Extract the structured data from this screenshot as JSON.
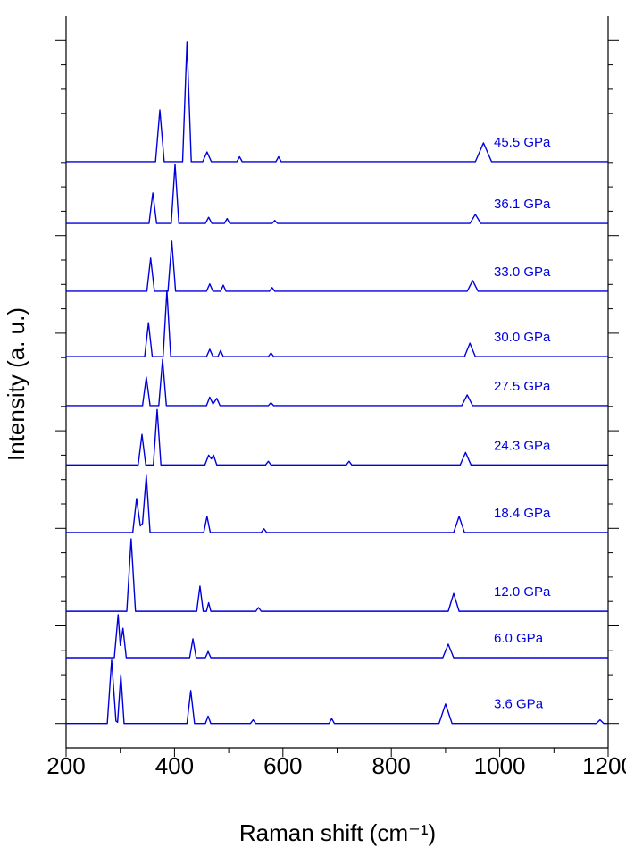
{
  "chart_data": {
    "type": "line",
    "x_label": "Raman shift (cm⁻¹)",
    "y_label": "Intensity (a. u.)",
    "xlim": [
      200,
      1200
    ],
    "xticks": [
      200,
      400,
      600,
      800,
      1000,
      1200
    ],
    "xticks_minor": [
      300,
      500,
      700,
      900,
      1100
    ],
    "ylim": [
      0,
      30
    ],
    "yticks": [
      1,
      2,
      3,
      4,
      5,
      6,
      7,
      8,
      9,
      10,
      11,
      12,
      13,
      14,
      15,
      16,
      17,
      18,
      19,
      20,
      21,
      22,
      23,
      24,
      25,
      26,
      27,
      28,
      29
    ],
    "color": "#0000dd",
    "series": [
      {
        "name": "3.6 GPa",
        "x": [
          200,
          276,
          284,
          292,
          295,
          301,
          307,
          423,
          430,
          437,
          457,
          462,
          467,
          540,
          545,
          550,
          685,
          690,
          695,
          888,
          900,
          912,
          1178,
          1185,
          1192,
          1200
        ],
        "values": [
          1,
          1,
          3.6,
          1.1,
          1.05,
          3.0,
          1,
          1,
          2.35,
          1,
          1,
          1.3,
          1,
          1,
          1.15,
          1,
          1,
          1.2,
          1,
          1,
          1.8,
          1,
          1,
          1.15,
          1,
          1
        ]
      },
      {
        "name": "6.0 GPa",
        "x": [
          200,
          289,
          296,
          300,
          305,
          311,
          428,
          434,
          440,
          457,
          462,
          467,
          895,
          905,
          915,
          1200
        ],
        "values": [
          3.7,
          3.7,
          5.46,
          4.2,
          4.9,
          3.7,
          3.7,
          4.47,
          3.7,
          3.7,
          3.95,
          3.7,
          3.7,
          4.25,
          3.7,
          3.7
        ]
      },
      {
        "name": "12.0 GPa",
        "x": [
          200,
          312,
          320,
          328,
          441,
          447,
          453,
          459,
          463,
          467,
          550,
          555,
          560,
          905,
          915,
          925,
          1200
        ],
        "values": [
          5.6,
          5.6,
          8.57,
          5.6,
          5.6,
          6.63,
          5.6,
          5.6,
          5.95,
          5.6,
          5.6,
          5.75,
          5.6,
          5.6,
          6.33,
          5.6,
          5.6
        ]
      },
      {
        "name": "18.4 GPa",
        "x": [
          200,
          323,
          330,
          337,
          341,
          348,
          355,
          454,
          460,
          466,
          560,
          565,
          570,
          915,
          925,
          935,
          1200
        ],
        "values": [
          8.83,
          8.83,
          10.22,
          9.1,
          9.2,
          11.17,
          8.83,
          8.83,
          9.49,
          8.83,
          8.83,
          8.98,
          8.83,
          8.83,
          9.49,
          8.83,
          8.83
        ]
      },
      {
        "name": "24.3 GPa",
        "x": [
          200,
          333,
          340,
          347,
          361,
          368,
          375,
          456,
          463,
          468,
          472,
          478,
          568,
          573,
          578,
          717,
          722,
          727,
          927,
          937,
          947,
          1200
        ],
        "values": [
          11.6,
          11.6,
          12.85,
          11.6,
          11.6,
          13.87,
          11.6,
          11.6,
          12.0,
          11.85,
          12.0,
          11.6,
          11.6,
          11.75,
          11.6,
          11.6,
          11.75,
          11.6,
          11.6,
          12.11,
          11.6,
          11.6
        ]
      },
      {
        "name": "27.5 GPa",
        "x": [
          200,
          341,
          348,
          355,
          371,
          378,
          385,
          459,
          465,
          471,
          478,
          484,
          573,
          578,
          583,
          930,
          940,
          950,
          1200
        ],
        "values": [
          14.03,
          14.03,
          15.2,
          14.03,
          14.03,
          15.93,
          14.03,
          14.03,
          14.38,
          14.1,
          14.33,
          14.03,
          14.03,
          14.15,
          14.03,
          14.03,
          14.47,
          14.03,
          14.03
        ]
      },
      {
        "name": "30.0 GPa",
        "x": [
          200,
          345,
          352,
          359,
          379,
          386,
          393,
          459,
          465,
          471,
          480,
          485,
          490,
          573,
          578,
          583,
          935,
          945,
          955,
          1200
        ],
        "values": [
          16.04,
          16.04,
          17.43,
          16.04,
          16.04,
          18.75,
          16.04,
          16.04,
          16.34,
          16.04,
          16.04,
          16.29,
          16.04,
          16.04,
          16.19,
          16.04,
          16.04,
          16.59,
          16.04,
          16.04
        ]
      },
      {
        "name": "33.0 GPa",
        "x": [
          200,
          349,
          356,
          363,
          388,
          395,
          402,
          459,
          465,
          471,
          485,
          490,
          495,
          575,
          580,
          585,
          940,
          950,
          960,
          1200
        ],
        "values": [
          18.72,
          18.72,
          20.08,
          18.72,
          18.72,
          20.77,
          18.72,
          18.72,
          19.02,
          18.72,
          18.72,
          18.97,
          18.72,
          18.72,
          18.87,
          18.72,
          18.72,
          19.16,
          18.72,
          18.72
        ]
      },
      {
        "name": "36.1 GPa",
        "x": [
          200,
          353,
          360,
          367,
          394,
          401,
          408,
          457,
          463,
          469,
          492,
          497,
          502,
          580,
          585,
          590,
          945,
          955,
          965,
          1200
        ],
        "values": [
          21.5,
          21.5,
          22.75,
          21.5,
          21.5,
          23.92,
          21.5,
          21.5,
          21.75,
          21.5,
          21.5,
          21.7,
          21.5,
          21.5,
          21.62,
          21.5,
          21.5,
          21.87,
          21.5,
          21.5
        ]
      },
      {
        "name": "45.5 GPa",
        "x": [
          200,
          365,
          373,
          381,
          415,
          423,
          431,
          452,
          460,
          468,
          515,
          520,
          525,
          587,
          592,
          597,
          955,
          970,
          985,
          1200
        ],
        "values": [
          24.03,
          24.03,
          26.15,
          24.03,
          24.03,
          28.94,
          24.03,
          24.03,
          24.43,
          24.03,
          24.03,
          24.23,
          24.03,
          24.03,
          24.23,
          24.03,
          24.03,
          24.8,
          24.03,
          24.03
        ]
      }
    ]
  }
}
